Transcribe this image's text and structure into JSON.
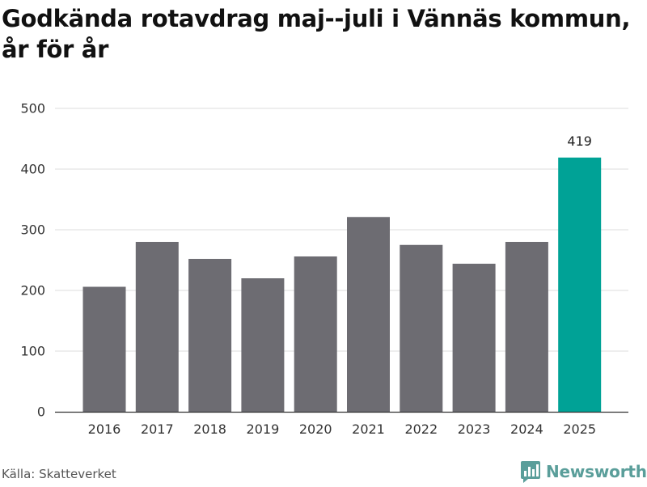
{
  "title": "Godkända rotavdrag maj--juli i Vännäs kommun, år för år",
  "source": "Källa: Skatteverket",
  "brand": {
    "name": "Newsworthy",
    "icon": "newsworthy-logo-icon",
    "color": "#5a9e9a"
  },
  "colors": {
    "bar": "#6d6c72",
    "highlight": "#00a296",
    "grid": "#dddddd",
    "axis": "#333333"
  },
  "chart_data": {
    "type": "bar",
    "categories": [
      "2016",
      "2017",
      "2018",
      "2019",
      "2020",
      "2021",
      "2022",
      "2023",
      "2024",
      "2025"
    ],
    "values": [
      206,
      280,
      252,
      220,
      256,
      321,
      275,
      244,
      280,
      419
    ],
    "highlight_index": 9,
    "data_labels": [
      {
        "index": 9,
        "text": "419"
      }
    ],
    "yticks": [
      "0",
      "100",
      "200",
      "300",
      "400",
      "500"
    ],
    "ylim": [
      0,
      500
    ],
    "xlabel": "",
    "ylabel": "",
    "grid": true,
    "legend": "none"
  }
}
